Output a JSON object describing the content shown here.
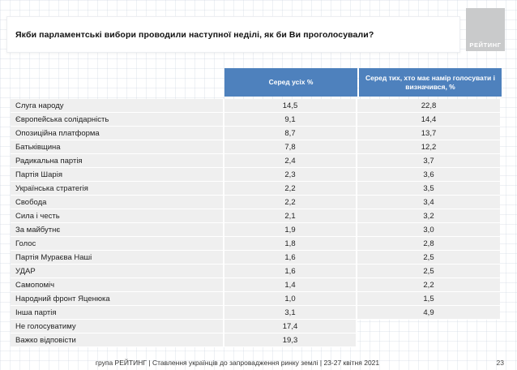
{
  "title": "Якби парламентські вибори проводили наступної неділі, як би Ви проголосували?",
  "logo": {
    "text": "РЕЙТИНГ"
  },
  "colors": {
    "header_blue": "#4E81BD",
    "row_gray": "#EFEFEF",
    "logo_gray": "#C9CACB",
    "background": "#FFFFFF"
  },
  "table": {
    "columns": [
      "Серед усіх %",
      "Серед тих, хто має намір голосувати і визначився, %"
    ],
    "rows": [
      {
        "name": "Слуга народу",
        "all": "14,5",
        "decided": "22,8"
      },
      {
        "name": "Європейська солідарність",
        "all": "9,1",
        "decided": "14,4"
      },
      {
        "name": "Опозиційна платформа",
        "all": "8,7",
        "decided": "13,7"
      },
      {
        "name": "Батьківщина",
        "all": "7,8",
        "decided": "12,2"
      },
      {
        "name": "Радикальна партія",
        "all": "2,4",
        "decided": "3,7"
      },
      {
        "name": "Партія Шарія",
        "all": "2,3",
        "decided": "3,6"
      },
      {
        "name": "Українська стратегія",
        "all": "2,2",
        "decided": "3,5"
      },
      {
        "name": "Свобода",
        "all": "2,2",
        "decided": "3,4"
      },
      {
        "name": "Сила і честь",
        "all": "2,1",
        "decided": "3,2"
      },
      {
        "name": "За майбутнє",
        "all": "1,9",
        "decided": "3,0"
      },
      {
        "name": "Голос",
        "all": "1,8",
        "decided": "2,8"
      },
      {
        "name": "Партія Мураєва Наші",
        "all": "1,6",
        "decided": "2,5"
      },
      {
        "name": "УДАР",
        "all": "1,6",
        "decided": "2,5"
      },
      {
        "name": "Самопоміч",
        "all": "1,4",
        "decided": "2,2"
      },
      {
        "name": "Народний фронт Яценюка",
        "all": "1,0",
        "decided": "1,5"
      },
      {
        "name": "Інша партія",
        "all": "3,1",
        "decided": "4,9"
      },
      {
        "name": "Не голосуватиму",
        "all": "17,4",
        "decided": null
      },
      {
        "name": "Важко відповісти",
        "all": "19,3",
        "decided": null
      }
    ]
  },
  "chart_data": {
    "type": "table",
    "title": "Якби парламентські вибори проводили наступної неділі, як би Ви проголосували?",
    "columns": [
      "Серед усіх %",
      "Серед тих, хто має намір голосувати і визначився, %"
    ],
    "categories": [
      "Слуга народу",
      "Європейська солідарність",
      "Опозиційна платформа",
      "Батьківщина",
      "Радикальна партія",
      "Партія Шарія",
      "Українська стратегія",
      "Свобода",
      "Сила і честь",
      "За майбутнє",
      "Голос",
      "Партія Мураєва Наші",
      "УДАР",
      "Самопоміч",
      "Народний фронт Яценюка",
      "Інша партія",
      "Не голосуватиму",
      "Важко відповісти"
    ],
    "series": [
      {
        "name": "Серед усіх %",
        "values": [
          14.5,
          9.1,
          8.7,
          7.8,
          2.4,
          2.3,
          2.2,
          2.2,
          2.1,
          1.9,
          1.8,
          1.6,
          1.6,
          1.4,
          1.0,
          3.1,
          17.4,
          19.3
        ]
      },
      {
        "name": "Серед тих, хто має намір голосувати і визначився, %",
        "values": [
          22.8,
          14.4,
          13.7,
          12.2,
          3.7,
          3.6,
          3.5,
          3.4,
          3.2,
          3.0,
          2.8,
          2.5,
          2.5,
          2.2,
          1.5,
          4.9,
          null,
          null
        ]
      }
    ]
  },
  "footer": {
    "text": "група РЕЙТИНГ | Ставлення українців до запровадження ринку землі | 23-27 квітня 2021",
    "page": "23"
  }
}
